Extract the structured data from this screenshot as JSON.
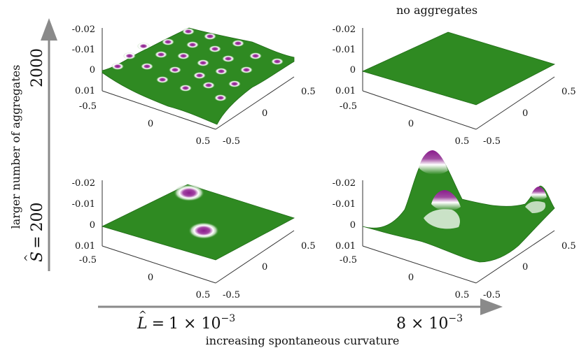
{
  "figure": {
    "top_left_header": "",
    "top_right_header": "no aggregates",
    "vertical_axis": {
      "caption": "larger number of aggregates",
      "value_low": "200",
      "value_high": "2000",
      "symbol": "S"
    },
    "horizontal_axis": {
      "caption": "increasing spontaneous curvature",
      "value_low": "1 × 10",
      "value_high": "8 × 10",
      "exponent": "−3",
      "symbol": "L"
    }
  },
  "panel_ticks": {
    "z": [
      "-0.02",
      "-0.01",
      "0",
      "0.01"
    ],
    "x": [
      "-0.5",
      "0",
      "0.5"
    ],
    "y": [
      "0.5",
      "0",
      "-0.5"
    ]
  },
  "panels": [
    {
      "id": "S2000-L1",
      "surface": "many small aggregates"
    },
    {
      "id": "S2000-L8",
      "surface": "flat"
    },
    {
      "id": "S200-L1",
      "surface": "two aggregates"
    },
    {
      "id": "S200-L8",
      "surface": "large deformations"
    }
  ],
  "colors": {
    "membrane": "#2f8a22",
    "membrane_dark": "#1f6b16",
    "aggregate": "#8a1c8c",
    "halo": "#ffffff",
    "axis_arrow": "#8a8a8a"
  }
}
